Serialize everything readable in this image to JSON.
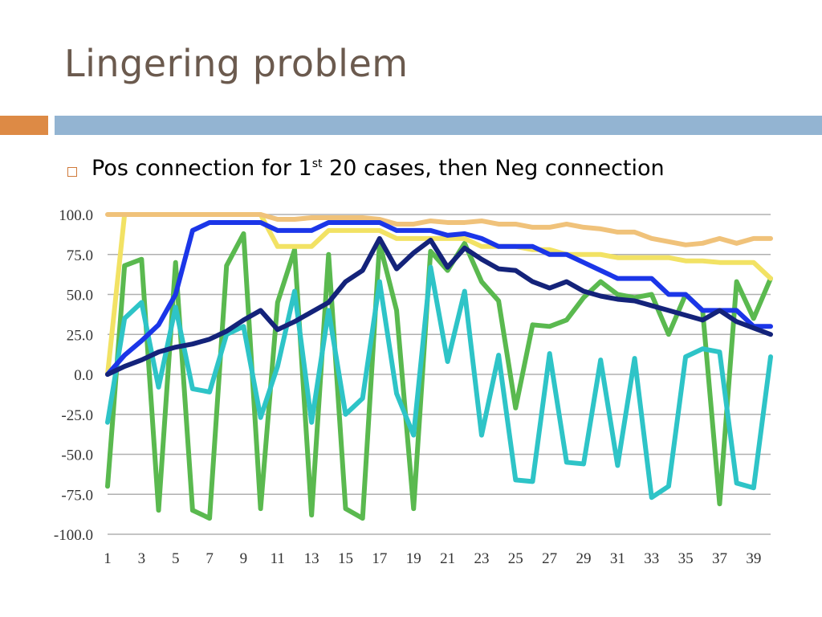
{
  "slide": {
    "title": "Lingering problem",
    "bullet": {
      "pre": "Pos connection for 1",
      "sup": "st",
      "post": " 20 cases, then Neg connection"
    }
  },
  "colors": {
    "title": "#6b5a4e",
    "accent_orange": "#dd8a45",
    "accent_blue": "#93b4d2"
  },
  "chart_data": {
    "type": "line",
    "title": "",
    "xlabel": "",
    "ylabel": "",
    "ylim": [
      -100,
      100
    ],
    "grid": true,
    "legend": "none",
    "y_ticks": [
      "100.0",
      "75.0",
      "50.0",
      "25.0",
      "0.0",
      "-25.0",
      "-50.0",
      "-75.0",
      "-100.0"
    ],
    "x_ticks": [
      "1",
      "3",
      "5",
      "7",
      "9",
      "11",
      "13",
      "15",
      "17",
      "19",
      "21",
      "23",
      "25",
      "27",
      "29",
      "31",
      "33",
      "35",
      "37",
      "39"
    ],
    "x": [
      1,
      2,
      3,
      4,
      5,
      6,
      7,
      8,
      9,
      10,
      11,
      12,
      13,
      14,
      15,
      16,
      17,
      18,
      19,
      20,
      21,
      22,
      23,
      24,
      25,
      26,
      27,
      28,
      29,
      30,
      31,
      32,
      33,
      34,
      35,
      36,
      37,
      38,
      39,
      40
    ],
    "series": [
      {
        "color": "#5ab94f",
        "values": [
          -70,
          68,
          72,
          -85,
          70,
          -85,
          -90,
          68,
          88,
          -84,
          45,
          78,
          -88,
          75,
          -84,
          -90,
          82,
          40,
          -84,
          77,
          65,
          82,
          58,
          46,
          -21,
          31,
          30,
          34,
          48,
          58,
          50,
          48,
          50,
          25,
          50,
          40,
          -81,
          58,
          35,
          60
        ]
      },
      {
        "color": "#2ec4c7",
        "values": [
          -30,
          35,
          45,
          -8,
          42,
          -9,
          -11,
          25,
          30,
          -27,
          5,
          52,
          -30,
          40,
          -25,
          -15,
          58,
          -12,
          -38,
          67,
          8,
          52,
          -38,
          12,
          -66,
          -67,
          13,
          -55,
          -56,
          9,
          -57,
          10,
          -77,
          -70,
          11,
          16,
          14,
          -68,
          -71,
          11
        ]
      },
      {
        "color": "#f2e264",
        "values": [
          0,
          100,
          100,
          100,
          100,
          100,
          100,
          100,
          100,
          100,
          80,
          80,
          80,
          90,
          90,
          90,
          90,
          85,
          85,
          85,
          85,
          85,
          80,
          80,
          80,
          78,
          78,
          75,
          75,
          75,
          73,
          73,
          73,
          73,
          71,
          71,
          70,
          70,
          70,
          60
        ]
      },
      {
        "color": "#f0c27a",
        "values": [
          100,
          100,
          100,
          100,
          100,
          100,
          100,
          100,
          100,
          100,
          97,
          97,
          98,
          98,
          98,
          98,
          97,
          94,
          94,
          96,
          95,
          95,
          96,
          94,
          94,
          92,
          92,
          94,
          92,
          91,
          89,
          89,
          85,
          83,
          81,
          82,
          85,
          82,
          85,
          85
        ]
      },
      {
        "color": "#1b36e8",
        "values": [
          0,
          12,
          21,
          31,
          50,
          90,
          95,
          95,
          95,
          95,
          90,
          90,
          90,
          95,
          95,
          95,
          95,
          90,
          90,
          90,
          87,
          88,
          85,
          80,
          80,
          80,
          75,
          75,
          70,
          65,
          60,
          60,
          60,
          50,
          50,
          40,
          40,
          40,
          30,
          30
        ]
      },
      {
        "color": "#14237a",
        "values": [
          0,
          5,
          9,
          14,
          17,
          19,
          22,
          27,
          34,
          40,
          28,
          33,
          39,
          45,
          58,
          65,
          85,
          66,
          76,
          84,
          67,
          79,
          72,
          66,
          65,
          58,
          54,
          58,
          52,
          49,
          47,
          46,
          43,
          40,
          37,
          34,
          40,
          33,
          29,
          25
        ]
      }
    ]
  }
}
